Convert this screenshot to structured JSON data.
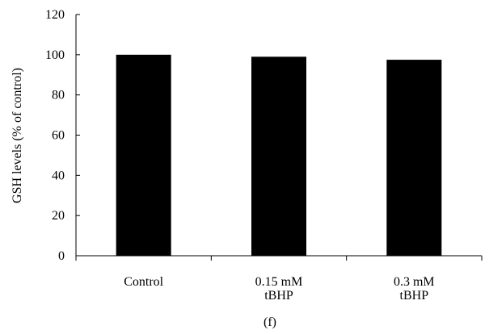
{
  "panel_label": "(f)",
  "chart_data": {
    "type": "bar",
    "title": "",
    "xlabel": "",
    "ylabel": "GSH levels (% of control)",
    "categories": [
      [
        "Control"
      ],
      [
        "0.15 mM",
        "tBHP"
      ],
      [
        "0.3 mM",
        "tBHP"
      ]
    ],
    "values": [
      100,
      99,
      97.5
    ],
    "ylim": [
      0,
      120
    ],
    "yticks": [
      0,
      20,
      40,
      60,
      80,
      100,
      120
    ],
    "grid": false,
    "legend": "none",
    "bar_color": "#000000"
  }
}
